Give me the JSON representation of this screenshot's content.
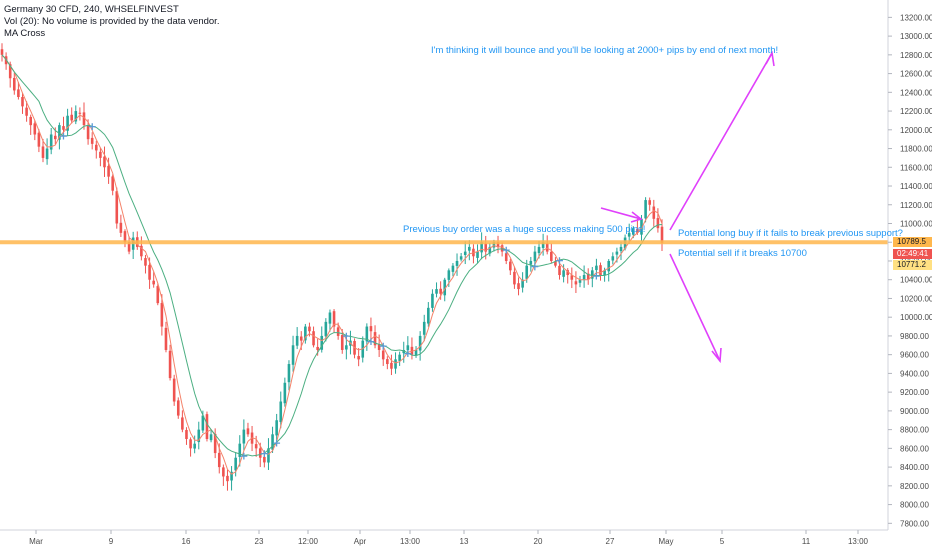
{
  "legend": {
    "symbol": "Germany 30 CFD, 240, WHSELFINVEST",
    "volume": "Vol (20): No volume is provided by the data vendor.",
    "indicator": "MA Cross"
  },
  "annotations": {
    "bounce": "I'm thinking it will bounce and you'll be looking at 2000+ pips by end of next month!",
    "previous_buy": "Previous buy order was a huge success making 500 pips!",
    "long_buy": "Potential long buy if it fails to break previous support?",
    "sell": "Potential sell if it breaks 10700"
  },
  "price_tags": {
    "last_price": "10789.5",
    "countdown": "02:49:41",
    "ma_value": "10771.2"
  },
  "price_axis": [
    "13200.00",
    "13000.00",
    "12800.00",
    "12600.00",
    "12400.00",
    "12200.00",
    "12000.00",
    "11800.00",
    "11600.00",
    "11400.00",
    "11200.00",
    "11000.00",
    "10800.00",
    "10600.00",
    "10400.00",
    "10200.00",
    "10000.00",
    "9800.00",
    "9600.00",
    "9400.00",
    "9200.00",
    "9000.00",
    "8800.00",
    "8600.00",
    "8400.00",
    "8200.00",
    "8000.00",
    "7800.00"
  ],
  "time_axis": [
    "Mar",
    "9",
    "16",
    "23",
    "12:00",
    "Apr",
    "13:00",
    "13",
    "20",
    "27",
    "May",
    "5",
    "11",
    "13:00"
  ],
  "colors": {
    "up": "#26a69a",
    "down": "#ef5350",
    "fast_ma": "#f4836a",
    "slow_ma": "#4caf82",
    "support_line": "#ffb74d",
    "annotation": "#2196f3",
    "arrows": "#e040fb",
    "cross_marker": "#5b9bd5"
  },
  "chart_data": {
    "type": "candlestick",
    "y_range": [
      7750,
      13300
    ],
    "support_level": 10800,
    "last_price": 10789.5,
    "fast_ma_last": 10771.2,
    "closes": [
      12800,
      12700,
      12550,
      12420,
      12350,
      12250,
      12150,
      12050,
      11950,
      11820,
      11700,
      11800,
      11950,
      11900,
      12050,
      12000,
      12150,
      12100,
      12200,
      12180,
      12050,
      11900,
      11850,
      11780,
      11700,
      11600,
      11500,
      11350,
      11000,
      10900,
      10800,
      10700,
      10850,
      10750,
      10650,
      10550,
      10400,
      10350,
      10150,
      9900,
      9650,
      9350,
      9100,
      8950,
      8800,
      8700,
      8600,
      8650,
      8800,
      8950,
      8700,
      8750,
      8550,
      8400,
      8300,
      8250,
      8350,
      8500,
      8650,
      8800,
      8750,
      8650,
      8600,
      8500,
      8450,
      8600,
      8750,
      8900,
      9100,
      9300,
      9500,
      9700,
      9800,
      9750,
      9900,
      9850,
      9700,
      9650,
      9800,
      9950,
      10050,
      9900,
      9800,
      9650,
      9700,
      9750,
      9600,
      9550,
      9750,
      9900,
      9850,
      9700,
      9650,
      9550,
      9500,
      9450,
      9550,
      9600,
      9650,
      9700,
      9600,
      9650,
      9800,
      9950,
      10100,
      10250,
      10300,
      10250,
      10400,
      10500,
      10550,
      10600,
      10650,
      10700,
      10750,
      10650,
      10700,
      10800,
      10700,
      10750,
      10800,
      10750,
      10700,
      10600,
      10500,
      10350,
      10300,
      10400,
      10550,
      10600,
      10700,
      10750,
      10800,
      10700,
      10600,
      10550,
      10450,
      10500,
      10450,
      10400,
      10350,
      10400,
      10450,
      10400,
      10500,
      10550,
      10450,
      10500,
      10600,
      10650,
      10700,
      10750,
      10850,
      10900,
      10950,
      10900,
      11050,
      11250,
      11200,
      11050,
      10950,
      10789.5
    ]
  }
}
